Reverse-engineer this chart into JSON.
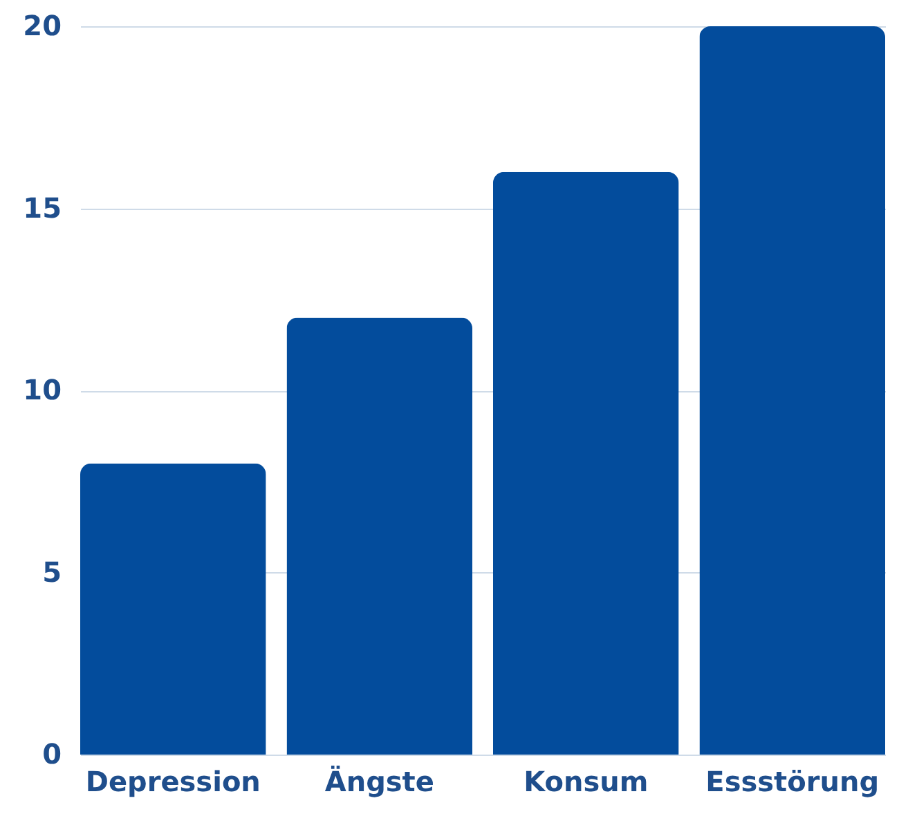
{
  "chart_data": {
    "type": "bar",
    "categories": [
      "Depression",
      "Ängste",
      "Konsum",
      "Essstörung"
    ],
    "values": [
      8,
      12,
      16,
      20
    ],
    "color": "#034c9c",
    "ylim": [
      0,
      20
    ],
    "yticks": [
      0,
      5,
      10,
      15,
      20
    ],
    "grid": "y"
  }
}
